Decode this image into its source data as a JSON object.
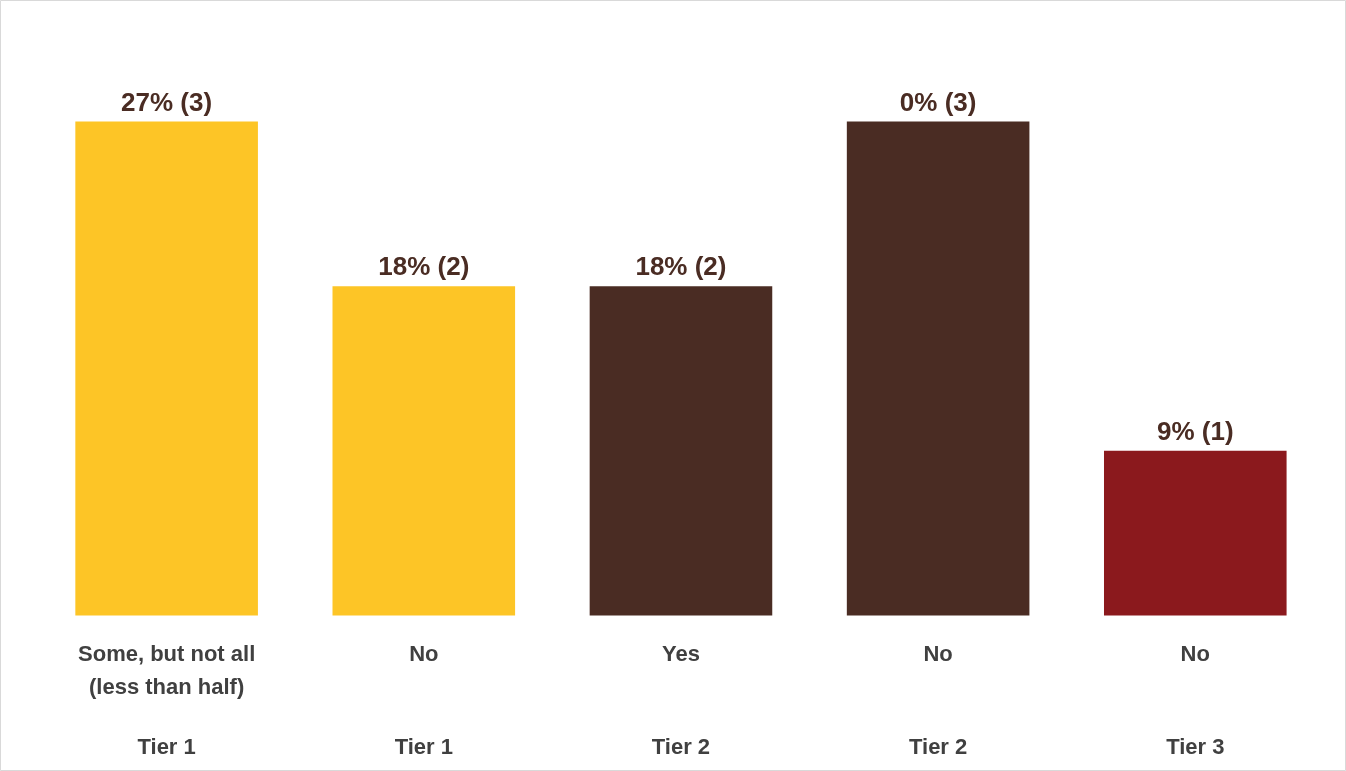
{
  "chart_data": {
    "type": "bar",
    "categories": [
      "Some, but not all\n(less than half)",
      "No",
      "Yes",
      "No",
      "No"
    ],
    "values": [
      3,
      2,
      2,
      3,
      1
    ],
    "colors": [
      "#fdc526",
      "#fdc526",
      "#4a2c23",
      "#4a2c23",
      "#8b191d"
    ],
    "value_labels": [
      "27% (3)",
      "18% (2)",
      "18% (2)",
      "0% (3)",
      "9% (1)"
    ],
    "annotations": [
      "Tier 1",
      "Tier 1",
      "Tier 2",
      "Tier 2",
      "Tier 3"
    ]
  }
}
